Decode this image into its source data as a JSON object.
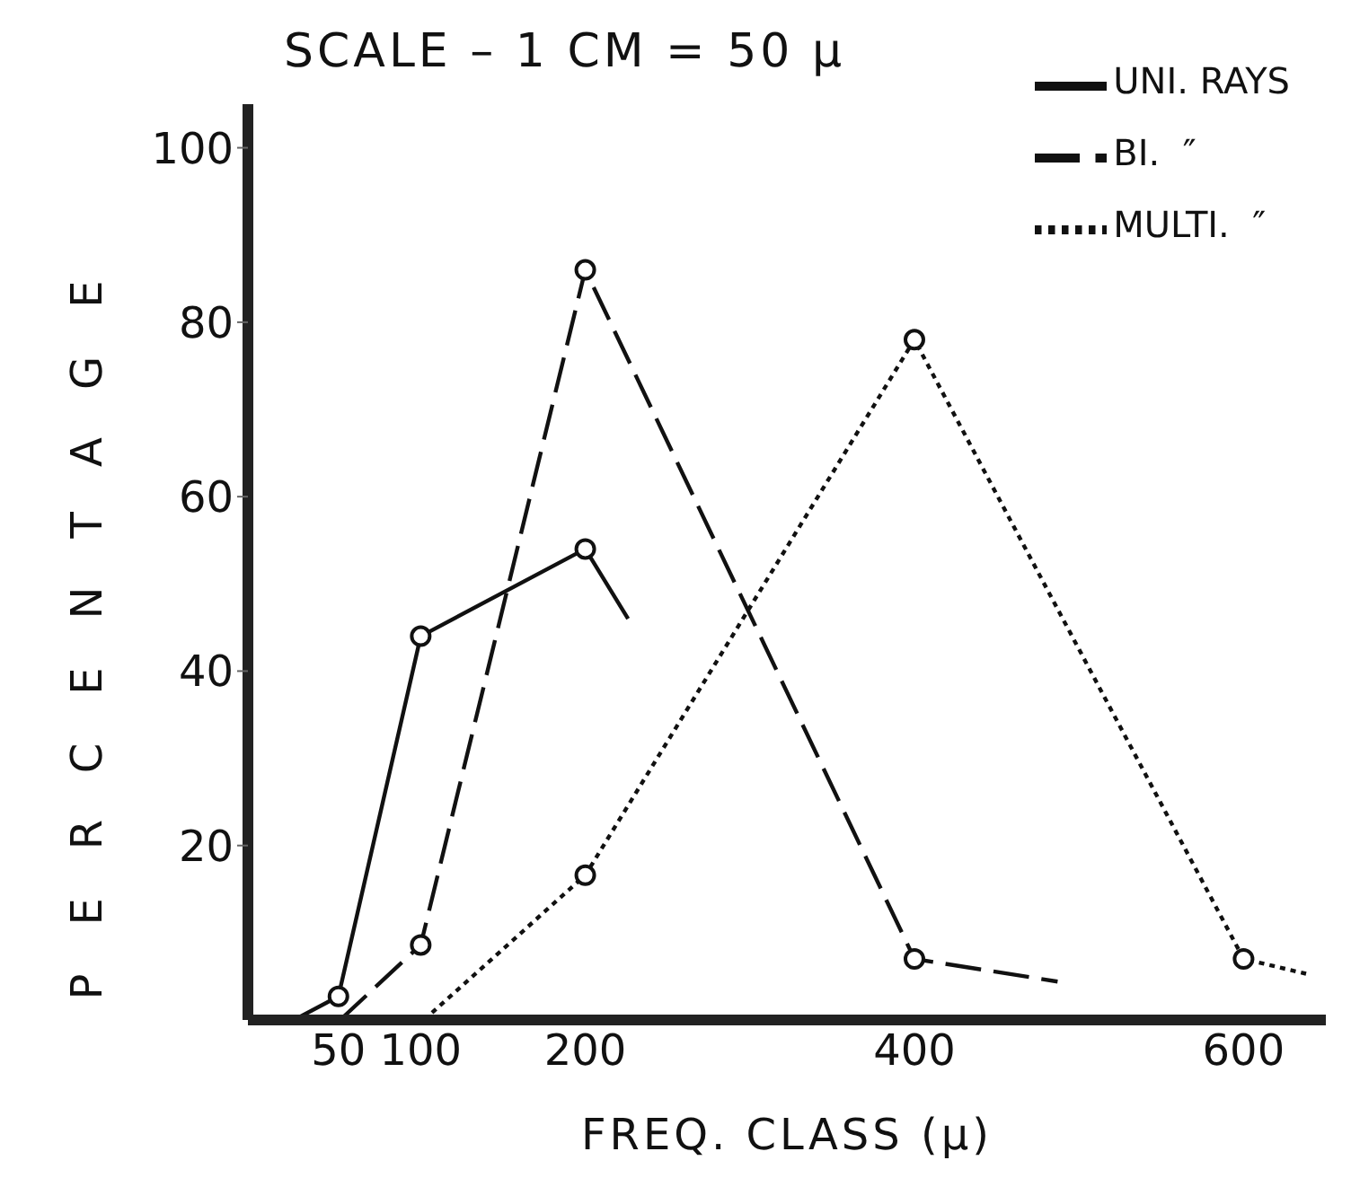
{
  "chart_data": {
    "type": "line",
    "title": "SCALE – 1 CM = 50 μ",
    "xlabel": "FREQ. CLASS (μ)",
    "ylabel": "PERCENTAGE",
    "xlim": [
      -5,
      650
    ],
    "xticks": [
      50,
      100,
      200,
      400,
      600
    ],
    "ylim": [
      0,
      105
    ],
    "yticks": [
      20,
      40,
      60,
      80,
      100
    ],
    "grid": false,
    "legend": "top right",
    "marker": "circle",
    "series": [
      {
        "name": "UNI. RAYS",
        "color": "#111111",
        "line_style": "solid",
        "x": [
          23,
          50,
          100,
          200,
          226
        ],
        "values": [
          0,
          2.7,
          44,
          54,
          46
        ]
      },
      {
        "name": "BI.  ″",
        "color": "#111111",
        "line_style": "dashed",
        "x": [
          51,
          100,
          200,
          400,
          487
        ],
        "values": [
          0,
          8.6,
          86,
          7,
          4.4
        ]
      },
      {
        "name": "MULTI.  ″",
        "color": "#111111",
        "line_style": "dotted",
        "x": [
          102,
          200,
          400,
          600,
          638
        ],
        "values": [
          0,
          16.6,
          78,
          7,
          5.3
        ]
      }
    ]
  }
}
